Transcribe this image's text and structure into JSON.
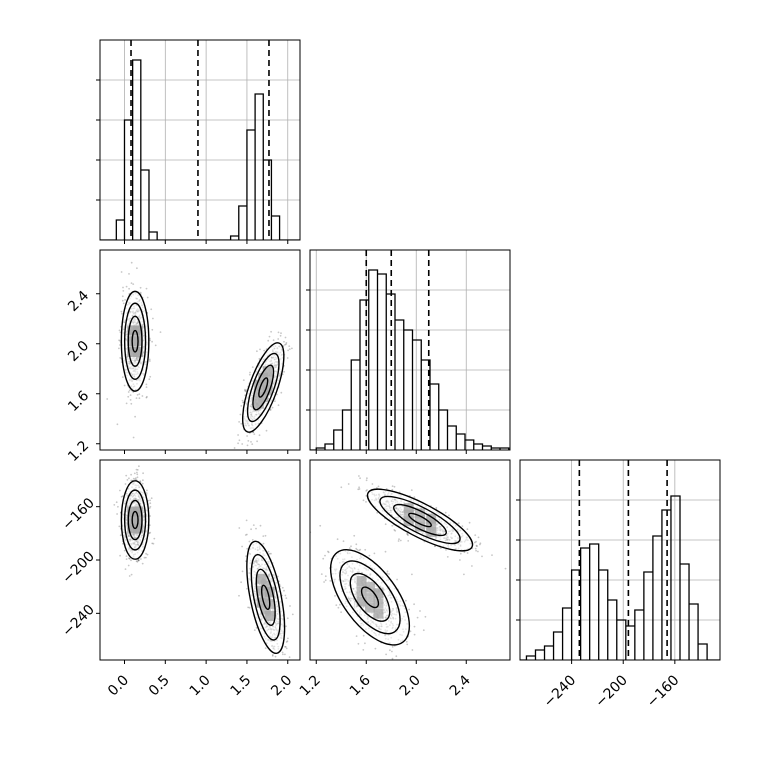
{
  "chart_data": [
    {
      "panel": "hist-p0",
      "type": "histogram",
      "x_ticks": [
        "0.0",
        "0.5",
        "1.0",
        "1.5",
        "2.0"
      ],
      "xlim": [
        -0.3,
        2.15
      ],
      "ylim": [
        0,
        1
      ],
      "grid": true,
      "bins": [
        [
          -0.1,
          0.0
        ],
        [
          0.0,
          0.1
        ],
        [
          0.1,
          0.2
        ],
        [
          0.2,
          0.3
        ],
        [
          0.3,
          0.4
        ],
        [
          0.4,
          0.5
        ],
        [
          1.3,
          1.4
        ],
        [
          1.4,
          1.5
        ],
        [
          1.5,
          1.6
        ],
        [
          1.6,
          1.7
        ],
        [
          1.7,
          1.8
        ],
        [
          1.8,
          1.9
        ],
        [
          1.9,
          2.0
        ]
      ],
      "counts": [
        0.1,
        0.6,
        0.9,
        0.35,
        0.04,
        0.0,
        0.02,
        0.17,
        0.55,
        0.73,
        0.4,
        0.12,
        0.0
      ],
      "quantile_lines": [
        0.08,
        0.9,
        1.77
      ]
    },
    {
      "panel": "scatter-p0-p1",
      "type": "scatter",
      "x_ticks": [
        "0.0",
        "0.5",
        "1.0",
        "1.5",
        "2.0"
      ],
      "y_ticks": [
        "1.2",
        "1.6",
        "2.0",
        "2.4"
      ],
      "xlim": [
        -0.3,
        2.15
      ],
      "ylim": [
        1.15,
        2.75
      ],
      "clusters": [
        {
          "center": [
            0.13,
            2.02
          ],
          "spread": [
            0.08,
            0.19
          ],
          "correlation": 0.0
        },
        {
          "center": [
            1.7,
            1.65
          ],
          "spread": [
            0.12,
            0.17
          ],
          "correlation": 0.7
        }
      ]
    },
    {
      "panel": "hist-p1",
      "type": "histogram",
      "x_ticks": [
        "1.2",
        "1.6",
        "2.0",
        "2.4"
      ],
      "xlim": [
        1.15,
        2.75
      ],
      "ylim": [
        0,
        1
      ],
      "grid": true,
      "bins": [
        [
          1.2,
          1.27
        ],
        [
          1.27,
          1.34
        ],
        [
          1.34,
          1.41
        ],
        [
          1.41,
          1.48
        ],
        [
          1.48,
          1.55
        ],
        [
          1.55,
          1.62
        ],
        [
          1.62,
          1.69
        ],
        [
          1.69,
          1.76
        ],
        [
          1.76,
          1.83
        ],
        [
          1.83,
          1.9
        ],
        [
          1.9,
          1.97
        ],
        [
          1.97,
          2.04
        ],
        [
          2.04,
          2.11
        ],
        [
          2.11,
          2.18
        ],
        [
          2.18,
          2.25
        ],
        [
          2.25,
          2.32
        ],
        [
          2.32,
          2.39
        ],
        [
          2.39,
          2.46
        ],
        [
          2.46,
          2.53
        ],
        [
          2.53,
          2.6
        ],
        [
          2.6,
          2.67
        ],
        [
          2.67,
          2.74
        ]
      ],
      "counts": [
        0.01,
        0.03,
        0.1,
        0.2,
        0.45,
        0.75,
        0.9,
        0.88,
        0.78,
        0.65,
        0.6,
        0.55,
        0.45,
        0.33,
        0.2,
        0.12,
        0.08,
        0.05,
        0.03,
        0.02,
        0.01,
        0.01
      ],
      "quantile_lines": [
        1.6,
        1.8,
        2.1
      ]
    },
    {
      "panel": "scatter-p0-p2",
      "type": "scatter",
      "x_ticks": [
        "0.0",
        "0.5",
        "1.0",
        "1.5",
        "2.0"
      ],
      "y_ticks": [
        "−160",
        "−200",
        "−240"
      ],
      "xlim": [
        -0.3,
        2.15
      ],
      "ylim": [
        -275,
        -125
      ],
      "clusters": [
        {
          "center": [
            0.13,
            -170
          ],
          "spread": [
            0.08,
            14
          ],
          "correlation": 0.0
        },
        {
          "center": [
            1.73,
            -228
          ],
          "spread": [
            0.11,
            20
          ],
          "correlation": -0.55
        }
      ]
    },
    {
      "panel": "scatter-p1-p2",
      "type": "scatter",
      "x_ticks": [
        "1.2",
        "1.6",
        "2.0",
        "2.4"
      ],
      "xlim": [
        1.15,
        2.75
      ],
      "ylim": [
        -275,
        -125
      ],
      "clusters": [
        {
          "center": [
            2.03,
            -170
          ],
          "spread": [
            0.2,
            11
          ],
          "correlation": -0.8
        },
        {
          "center": [
            1.63,
            -228
          ],
          "spread": [
            0.15,
            17
          ],
          "correlation": -0.6
        }
      ]
    },
    {
      "panel": "hist-p2",
      "type": "histogram",
      "x_ticks": [
        "−240",
        "−200",
        "−160"
      ],
      "xlim": [
        -280,
        -125
      ],
      "ylim": [
        0,
        1
      ],
      "grid": true,
      "bins": [
        [
          -275,
          -268
        ],
        [
          -268,
          -261
        ],
        [
          -261,
          -254
        ],
        [
          -254,
          -247
        ],
        [
          -247,
          -240
        ],
        [
          -240,
          -233
        ],
        [
          -233,
          -226
        ],
        [
          -226,
          -219
        ],
        [
          -219,
          -212
        ],
        [
          -212,
          -205
        ],
        [
          -205,
          -198
        ],
        [
          -198,
          -191
        ],
        [
          -191,
          -184
        ],
        [
          -184,
          -177
        ],
        [
          -177,
          -170
        ],
        [
          -170,
          -163
        ],
        [
          -163,
          -156
        ],
        [
          -156,
          -149
        ],
        [
          -149,
          -142
        ],
        [
          -142,
          -135
        ]
      ],
      "counts": [
        0.02,
        0.05,
        0.07,
        0.14,
        0.26,
        0.45,
        0.56,
        0.58,
        0.45,
        0.3,
        0.2,
        0.17,
        0.25,
        0.44,
        0.62,
        0.75,
        0.82,
        0.48,
        0.28,
        0.08
      ],
      "quantile_lines": [
        -234,
        -196,
        -166
      ]
    }
  ]
}
